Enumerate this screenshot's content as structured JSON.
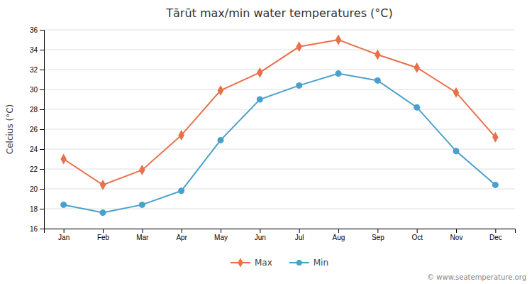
{
  "chart_data": {
    "type": "line",
    "title": "Tārūt max/min water temperatures (°C)",
    "y_label": "Celcius (°C)",
    "categories": [
      "Jan",
      "Feb",
      "Mar",
      "Apr",
      "May",
      "Jun",
      "Jul",
      "Aug",
      "Sep",
      "Oct",
      "Nov",
      "Dec"
    ],
    "series": [
      {
        "name": "Max",
        "color": "#e8714a",
        "marker": "diamond",
        "values": [
          23.0,
          20.4,
          21.9,
          25.4,
          29.9,
          31.7,
          34.3,
          35.0,
          33.5,
          32.2,
          29.7,
          25.2
        ]
      },
      {
        "name": "Min",
        "color": "#4aa0cc",
        "marker": "circle",
        "values": [
          18.4,
          17.6,
          18.4,
          19.8,
          24.9,
          29.0,
          30.4,
          31.6,
          30.9,
          28.2,
          23.8,
          20.4
        ]
      }
    ],
    "ylim": [
      16,
      36
    ],
    "yticks": [
      16,
      18,
      20,
      22,
      24,
      26,
      28,
      30,
      32,
      34,
      36
    ],
    "grid": true,
    "legend": "bottom",
    "annotations": [
      "© www.seatemperature.org"
    ]
  }
}
